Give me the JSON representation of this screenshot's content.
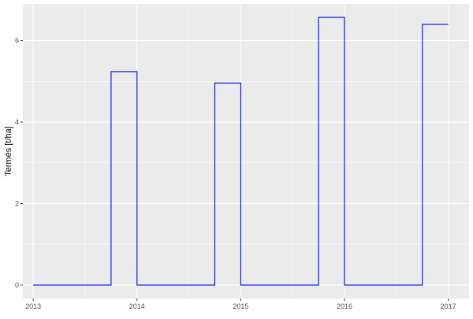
{
  "chart_data": {
    "type": "line",
    "step": true,
    "title": "",
    "xlabel": "",
    "ylabel": "Termés [t/ha]",
    "xlim": [
      2012.9,
      2017.2
    ],
    "ylim": [
      -0.33,
      6.9
    ],
    "x_ticks": [
      "2013",
      "2014",
      "2015",
      "2016",
      "2017"
    ],
    "x_tick_values": [
      2013,
      2014,
      2015,
      2016,
      2017
    ],
    "y_ticks": [
      "0",
      "2",
      "4",
      "6"
    ],
    "y_tick_values": [
      0,
      2,
      4,
      6
    ],
    "grid": true,
    "line_color": "#0000ff",
    "panel_color": "#ebebeb",
    "x": [
      2013.0,
      2013.75,
      2013.75,
      2014.0,
      2014.0,
      2014.75,
      2014.75,
      2015.0,
      2015.0,
      2015.75,
      2015.75,
      2016.0,
      2016.0,
      2016.75,
      2016.75,
      2017.0
    ],
    "y": [
      0,
      0,
      5.24,
      5.24,
      0,
      0,
      4.96,
      4.96,
      0,
      0,
      6.57,
      6.57,
      0,
      0,
      6.4,
      6.4
    ]
  }
}
